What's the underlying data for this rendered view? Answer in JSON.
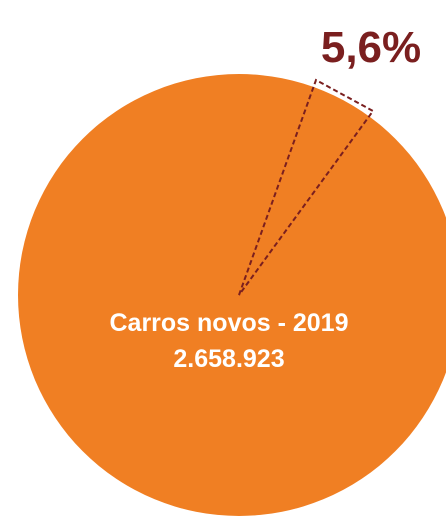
{
  "chart_data": {
    "type": "pie",
    "slices": [
      {
        "label": "Carros novos - 2019",
        "value": 2658923,
        "value_label": "2.658.923",
        "color": "#F07F23",
        "share": 0.944
      },
      {
        "label": "",
        "value_label": "5,6%",
        "share": 0.056,
        "color": "#7A1F1F",
        "style": "dashed-outline"
      }
    ]
  }
}
